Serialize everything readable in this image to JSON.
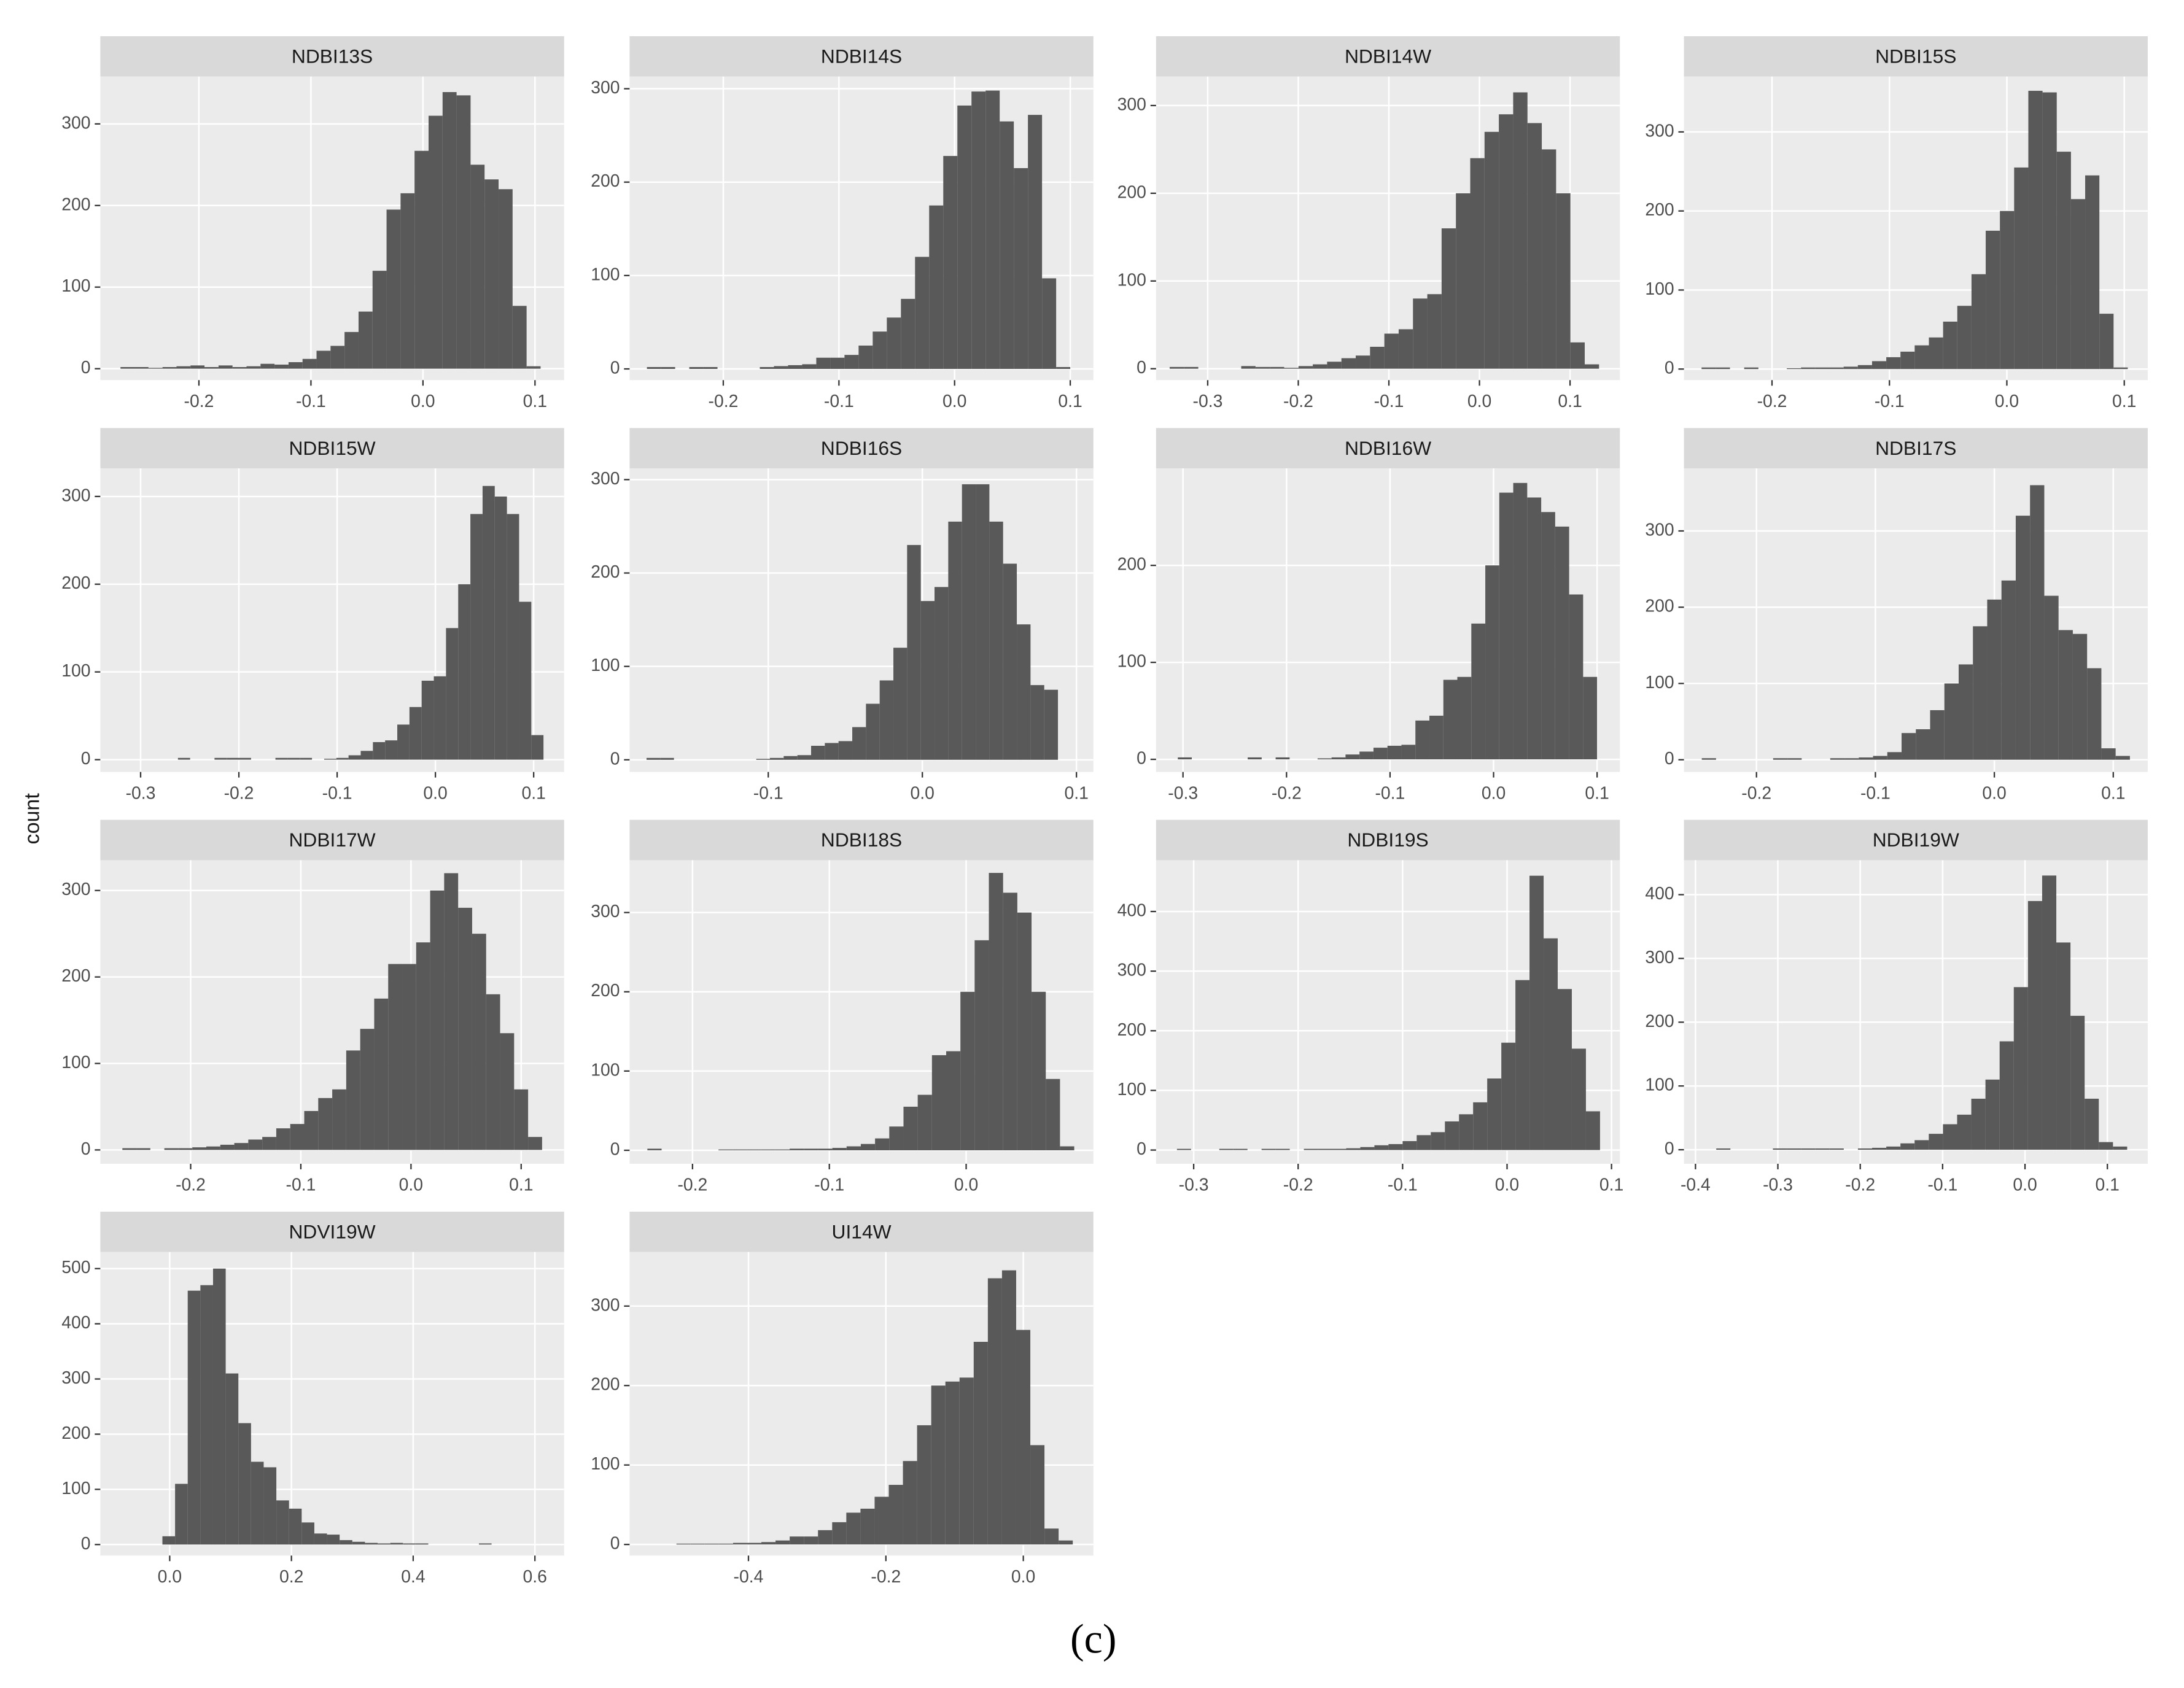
{
  "ylabel": "count",
  "caption": "(c)",
  "chart_data": [
    {
      "type": "histogram",
      "title": "NDBI13S",
      "color": "#595959",
      "grid": true,
      "xlim": [
        -0.288,
        0.126
      ],
      "ylim": [
        -14,
        358
      ],
      "xticks": [
        -0.2,
        -0.1,
        {
          "value": 0,
          "label": "0.0"
        },
        0.1
      ],
      "yticks": [
        0,
        100,
        200,
        300
      ],
      "bins": [
        -0.27,
        -0.2575,
        -0.245,
        -0.2325,
        -0.22,
        -0.2075,
        -0.195,
        -0.1825,
        -0.17,
        -0.1575,
        -0.145,
        -0.1325,
        -0.12,
        -0.1075,
        -0.095,
        -0.0825,
        -0.07,
        -0.0575,
        -0.045,
        -0.0325,
        -0.02,
        -0.0075,
        0.005,
        0.0175,
        0.03,
        0.0425,
        0.055,
        0.0675,
        0.08,
        0.0925,
        0.105
      ],
      "counts": [
        2,
        2,
        1,
        2,
        3,
        4,
        2,
        4,
        2,
        3,
        6,
        5,
        8,
        12,
        22,
        28,
        45,
        70,
        120,
        195,
        215,
        267,
        310,
        339,
        335,
        250,
        232,
        220,
        77,
        3
      ]
    },
    {
      "type": "histogram",
      "title": "NDBI14S",
      "color": "#595959",
      "grid": true,
      "xlim": [
        -0.281,
        0.12
      ],
      "ylim": [
        -12,
        313
      ],
      "xticks": [
        -0.2,
        -0.1,
        {
          "value": 0,
          "label": "0.0"
        },
        0.1
      ],
      "yticks": [
        0,
        100,
        200,
        300
      ],
      "bins": [
        -0.266,
        -0.2538,
        -0.2416,
        -0.2294,
        -0.2172,
        -0.205,
        -0.1928,
        -0.1806,
        -0.1684,
        -0.1562,
        -0.144,
        -0.1318,
        -0.1196,
        -0.1074,
        -0.0952,
        -0.083,
        -0.0708,
        -0.0586,
        -0.0464,
        -0.0342,
        -0.022,
        -0.0098,
        0.0024,
        0.0146,
        0.0268,
        0.039,
        0.0512,
        0.0634,
        0.0756,
        0.0878,
        0.1
      ],
      "counts": [
        2,
        2,
        0,
        2,
        2,
        0,
        0,
        0,
        2,
        3,
        4,
        5,
        12,
        12,
        15,
        25,
        40,
        55,
        75,
        120,
        175,
        228,
        282,
        297,
        298,
        265,
        215,
        272,
        97,
        2
      ]
    },
    {
      "type": "histogram",
      "title": "NDBI14W",
      "color": "#595959",
      "grid": true,
      "xlim": [
        -0.357,
        0.155
      ],
      "ylim": [
        -13,
        333
      ],
      "xticks": [
        -0.3,
        -0.2,
        -0.1,
        {
          "value": 0,
          "label": "0.0"
        },
        0.1
      ],
      "yticks": [
        0,
        100,
        200,
        300
      ],
      "bins": [
        -0.342,
        -0.3262,
        -0.3104,
        -0.2946,
        -0.2788,
        -0.263,
        -0.2472,
        -0.2314,
        -0.2156,
        -0.1998,
        -0.184,
        -0.1682,
        -0.1524,
        -0.1366,
        -0.1208,
        -0.105,
        -0.0892,
        -0.0734,
        -0.0576,
        -0.0418,
        -0.026,
        -0.0102,
        0.0056,
        0.0214,
        0.0372,
        0.053,
        0.0688,
        0.0846,
        0.1004,
        0.1162,
        0.132
      ],
      "counts": [
        2,
        2,
        0,
        0,
        0,
        3,
        2,
        2,
        1,
        3,
        5,
        8,
        12,
        15,
        25,
        40,
        45,
        80,
        85,
        160,
        200,
        240,
        270,
        290,
        315,
        280,
        250,
        200,
        30,
        5
      ]
    },
    {
      "type": "histogram",
      "title": "NDBI15S",
      "color": "#595959",
      "grid": true,
      "xlim": [
        -0.275,
        0.12
      ],
      "ylim": [
        -14,
        370
      ],
      "xticks": [
        -0.2,
        -0.1,
        {
          "value": 0,
          "label": "0.0"
        },
        0.1
      ],
      "yticks": [
        0,
        100,
        200,
        300
      ],
      "bins": [
        -0.26,
        -0.2479,
        -0.2358,
        -0.2237,
        -0.2116,
        -0.1995,
        -0.1874,
        -0.1753,
        -0.1632,
        -0.1511,
        -0.139,
        -0.1269,
        -0.1148,
        -0.1027,
        -0.0906,
        -0.0785,
        -0.0664,
        -0.0543,
        -0.0422,
        -0.0301,
        -0.018,
        -0.0059,
        0.0062,
        0.0183,
        0.0304,
        0.0425,
        0.0546,
        0.0667,
        0.0788,
        0.0909,
        0.103
      ],
      "counts": [
        2,
        2,
        0,
        2,
        0,
        0,
        1,
        2,
        2,
        2,
        3,
        5,
        10,
        15,
        22,
        30,
        40,
        60,
        80,
        120,
        175,
        200,
        255,
        352,
        350,
        275,
        215,
        245,
        70,
        2
      ]
    },
    {
      "type": "histogram",
      "title": "NDBI15W",
      "color": "#595959",
      "grid": true,
      "xlim": [
        -0.341,
        0.131
      ],
      "ylim": [
        -14,
        332
      ],
      "xticks": [
        -0.3,
        -0.2,
        -0.1,
        {
          "value": 0,
          "label": "0.0"
        },
        0.1
      ],
      "yticks": [
        0,
        100,
        200,
        300
      ],
      "bins": [
        -0.262,
        -0.2496,
        -0.2372,
        -0.2248,
        -0.2124,
        -0.2,
        -0.1876,
        -0.1752,
        -0.1628,
        -0.1504,
        -0.138,
        -0.1256,
        -0.1132,
        -0.1008,
        -0.0884,
        -0.076,
        -0.0636,
        -0.0512,
        -0.0388,
        -0.0264,
        -0.014,
        -0.0016,
        0.0108,
        0.0232,
        0.0356,
        0.048,
        0.0604,
        0.0728,
        0.0852,
        0.0976,
        0.11
      ],
      "counts": [
        2,
        0,
        0,
        2,
        2,
        2,
        0,
        0,
        2,
        2,
        2,
        0,
        1,
        2,
        5,
        10,
        20,
        22,
        40,
        60,
        90,
        95,
        150,
        200,
        280,
        312,
        300,
        280,
        180,
        28
      ]
    },
    {
      "type": "histogram",
      "title": "NDBI16S",
      "color": "#595959",
      "grid": true,
      "xlim": [
        -0.19,
        0.111
      ],
      "ylim": [
        -13,
        312
      ],
      "xticks": [
        -0.1,
        {
          "value": 0,
          "label": "0.0"
        },
        0.1
      ],
      "yticks": [
        0,
        100,
        200,
        300
      ],
      "bins": [
        -0.179,
        -0.1701,
        -0.1612,
        -0.1523,
        -0.1434,
        -0.1345,
        -0.1256,
        -0.1167,
        -0.1078,
        -0.0989,
        -0.09,
        -0.0811,
        -0.0722,
        -0.0633,
        -0.0544,
        -0.0455,
        -0.0366,
        -0.0277,
        -0.0188,
        -0.0099,
        -0.001,
        0.0079,
        0.0168,
        0.0257,
        0.0346,
        0.0435,
        0.0524,
        0.0613,
        0.0702,
        0.0791,
        0.088
      ],
      "counts": [
        2,
        2,
        0,
        0,
        0,
        0,
        0,
        0,
        1,
        2,
        4,
        5,
        15,
        18,
        20,
        35,
        60,
        85,
        120,
        230,
        170,
        185,
        255,
        295,
        295,
        255,
        210,
        145,
        80,
        75
      ]
    },
    {
      "type": "histogram",
      "title": "NDBI16W",
      "color": "#595959",
      "grid": true,
      "xlim": [
        -0.326,
        0.122
      ],
      "ylim": [
        -13,
        300
      ],
      "xticks": [
        -0.3,
        -0.2,
        -0.1,
        {
          "value": 0,
          "label": "0.0"
        },
        0.1
      ],
      "yticks": [
        0,
        100,
        200
      ],
      "bins": [
        -0.305,
        -0.2915,
        -0.278,
        -0.2645,
        -0.251,
        -0.2375,
        -0.224,
        -0.2105,
        -0.197,
        -0.1835,
        -0.17,
        -0.1565,
        -0.143,
        -0.1295,
        -0.116,
        -0.1025,
        -0.089,
        -0.0755,
        -0.062,
        -0.0485,
        -0.035,
        -0.0215,
        -0.008,
        0.0055,
        0.019,
        0.0325,
        0.046,
        0.0595,
        0.073,
        0.0865,
        0.1
      ],
      "counts": [
        2,
        0,
        0,
        0,
        0,
        2,
        0,
        2,
        0,
        0,
        1,
        2,
        5,
        8,
        12,
        14,
        15,
        40,
        45,
        82,
        85,
        140,
        200,
        275,
        285,
        270,
        255,
        240,
        170,
        85
      ]
    },
    {
      "type": "histogram",
      "title": "NDBI17S",
      "color": "#595959",
      "grid": true,
      "xlim": [
        -0.261,
        0.129
      ],
      "ylim": [
        -16,
        382
      ],
      "xticks": [
        -0.2,
        -0.1,
        {
          "value": 0,
          "label": "0.0"
        },
        0.1
      ],
      "yticks": [
        0,
        100,
        200,
        300
      ],
      "bins": [
        -0.246,
        -0.234,
        -0.222,
        -0.21,
        -0.198,
        -0.186,
        -0.174,
        -0.162,
        -0.15,
        -0.138,
        -0.126,
        -0.114,
        -0.102,
        -0.09,
        -0.078,
        -0.066,
        -0.054,
        -0.042,
        -0.03,
        -0.018,
        -0.006,
        0.006,
        0.018,
        0.03,
        0.042,
        0.054,
        0.066,
        0.078,
        0.09,
        0.102,
        0.114
      ],
      "counts": [
        2,
        0,
        0,
        0,
        0,
        2,
        2,
        0,
        0,
        2,
        2,
        3,
        5,
        10,
        35,
        40,
        65,
        100,
        125,
        175,
        210,
        235,
        320,
        360,
        215,
        170,
        165,
        120,
        15,
        5
      ]
    },
    {
      "type": "histogram",
      "title": "NDBI17W",
      "color": "#595959",
      "grid": true,
      "xlim": [
        -0.282,
        0.139
      ],
      "ylim": [
        -16,
        335
      ],
      "xticks": [
        -0.2,
        -0.1,
        {
          "value": 0,
          "label": "0.0"
        },
        0.1
      ],
      "yticks": [
        0,
        100,
        200,
        300
      ],
      "bins": [
        -0.262,
        -0.2493,
        -0.2366,
        -0.2239,
        -0.2112,
        -0.1985,
        -0.1858,
        -0.1731,
        -0.1604,
        -0.1477,
        -0.135,
        -0.1223,
        -0.1096,
        -0.0969,
        -0.0842,
        -0.0715,
        -0.0588,
        -0.0461,
        -0.0334,
        -0.0207,
        -0.008,
        0.0047,
        0.0174,
        0.0301,
        0.0428,
        0.0555,
        0.0682,
        0.0809,
        0.0936,
        0.1063,
        0.119
      ],
      "counts": [
        2,
        2,
        0,
        2,
        2,
        3,
        4,
        6,
        8,
        12,
        15,
        25,
        30,
        45,
        60,
        70,
        115,
        140,
        175,
        215,
        215,
        240,
        300,
        320,
        280,
        250,
        180,
        135,
        70,
        15
      ]
    },
    {
      "type": "histogram",
      "title": "NDBI18S",
      "color": "#595959",
      "grid": true,
      "xlim": [
        -0.246,
        0.093
      ],
      "ylim": [
        -17,
        366
      ],
      "xticks": [
        -0.2,
        -0.1,
        {
          "value": 0,
          "label": "0.0"
        }
      ],
      "yticks": [
        0,
        100,
        200,
        300
      ],
      "bins": [
        -0.233,
        -0.2226,
        -0.2122,
        -0.2018,
        -0.1914,
        -0.181,
        -0.1706,
        -0.1602,
        -0.1498,
        -0.1394,
        -0.129,
        -0.1186,
        -0.1082,
        -0.0978,
        -0.0874,
        -0.077,
        -0.0666,
        -0.0562,
        -0.0458,
        -0.0354,
        -0.025,
        -0.0146,
        -0.0042,
        0.0062,
        0.0166,
        0.027,
        0.0374,
        0.0478,
        0.0582,
        0.0686,
        0.079
      ],
      "counts": [
        2,
        0,
        0,
        0,
        0,
        1,
        1,
        1,
        1,
        1,
        2,
        2,
        2,
        3,
        5,
        8,
        15,
        30,
        55,
        70,
        120,
        125,
        200,
        265,
        350,
        325,
        300,
        200,
        90,
        5
      ]
    },
    {
      "type": "histogram",
      "title": "NDBI19S",
      "color": "#595959",
      "grid": true,
      "xlim": [
        -0.336,
        0.108
      ],
      "ylim": [
        -23,
        486
      ],
      "xticks": [
        -0.3,
        -0.2,
        -0.1,
        {
          "value": 0,
          "label": "0.0"
        },
        0.1
      ],
      "yticks": [
        0,
        100,
        200,
        300,
        400
      ],
      "bins": [
        -0.316,
        -0.3025,
        -0.289,
        -0.2755,
        -0.262,
        -0.2485,
        -0.235,
        -0.2215,
        -0.208,
        -0.1945,
        -0.181,
        -0.1675,
        -0.154,
        -0.1405,
        -0.127,
        -0.1135,
        -0.1,
        -0.0865,
        -0.073,
        -0.0595,
        -0.046,
        -0.0325,
        -0.019,
        -0.0055,
        0.008,
        0.0215,
        0.035,
        0.0485,
        0.062,
        0.0755,
        0.089
      ],
      "counts": [
        2,
        0,
        0,
        2,
        2,
        0,
        2,
        2,
        0,
        2,
        2,
        2,
        3,
        5,
        8,
        10,
        15,
        25,
        30,
        48,
        60,
        80,
        120,
        180,
        285,
        460,
        355,
        270,
        170,
        65
      ]
    },
    {
      "type": "histogram",
      "title": "NDBI19W",
      "color": "#595959",
      "grid": true,
      "xlim": [
        -0.414,
        0.149
      ],
      "ylim": [
        -22,
        454
      ],
      "xticks": [
        -0.4,
        -0.3,
        -0.2,
        -0.1,
        {
          "value": 0,
          "label": "0.0"
        },
        0.1
      ],
      "yticks": [
        0,
        100,
        200,
        300,
        400
      ],
      "bins": [
        -0.392,
        -0.3748,
        -0.3576,
        -0.3404,
        -0.3232,
        -0.306,
        -0.2888,
        -0.2716,
        -0.2544,
        -0.2372,
        -0.22,
        -0.2028,
        -0.1856,
        -0.1684,
        -0.1512,
        -0.134,
        -0.1168,
        -0.0996,
        -0.0824,
        -0.0652,
        -0.048,
        -0.0308,
        -0.0136,
        0.0036,
        0.0208,
        0.038,
        0.0552,
        0.0724,
        0.0896,
        0.1068,
        0.124
      ],
      "counts": [
        0,
        2,
        0,
        0,
        0,
        2,
        2,
        2,
        2,
        2,
        0,
        2,
        3,
        5,
        10,
        15,
        25,
        40,
        55,
        80,
        110,
        170,
        255,
        390,
        430,
        325,
        210,
        80,
        12,
        5
      ]
    },
    {
      "type": "histogram",
      "title": "NDVI19W",
      "color": "#595959",
      "grid": true,
      "xlim": [
        -0.114,
        0.648
      ],
      "ylim": [
        -20,
        530
      ],
      "xticks": [
        {
          "value": 0,
          "label": "0.0"
        },
        0.2,
        0.4,
        0.6
      ],
      "yticks": [
        0,
        100,
        200,
        300,
        400,
        500
      ],
      "bins": [
        -0.012,
        0.0088,
        0.0296,
        0.0504,
        0.0712,
        0.092,
        0.1128,
        0.1336,
        0.1544,
        0.1752,
        0.196,
        0.2168,
        0.2376,
        0.2584,
        0.2792,
        0.3,
        0.3208,
        0.3416,
        0.3624,
        0.3832,
        0.404,
        0.4248,
        0.4456,
        0.4664,
        0.4872,
        0.508,
        0.5288,
        0.5496,
        0.5704,
        0.5912,
        0.612
      ],
      "counts": [
        15,
        110,
        460,
        470,
        500,
        310,
        220,
        150,
        140,
        80,
        65,
        40,
        20,
        18,
        8,
        5,
        3,
        2,
        3,
        2,
        2,
        0,
        0,
        0,
        0,
        2,
        0,
        0,
        0,
        0
      ]
    },
    {
      "type": "histogram",
      "title": "UI14W",
      "color": "#595959",
      "grid": true,
      "xlim": [
        -0.573,
        0.102
      ],
      "ylim": [
        -14,
        368
      ],
      "xticks": [
        -0.4,
        -0.2,
        {
          "value": 0,
          "label": "0.0"
        }
      ],
      "yticks": [
        0,
        100,
        200,
        300
      ],
      "bins": [
        -0.546,
        -0.5254,
        -0.5048,
        -0.4842,
        -0.4636,
        -0.443,
        -0.4224,
        -0.4018,
        -0.3812,
        -0.3606,
        -0.34,
        -0.3194,
        -0.2988,
        -0.2782,
        -0.2576,
        -0.237,
        -0.2164,
        -0.1958,
        -0.1752,
        -0.1546,
        -0.134,
        -0.1134,
        -0.0928,
        -0.0722,
        -0.0516,
        -0.031,
        -0.0104,
        0.0102,
        0.0308,
        0.0514,
        0.072
      ],
      "counts": [
        0,
        0,
        1,
        1,
        1,
        1,
        2,
        2,
        3,
        5,
        10,
        10,
        18,
        28,
        40,
        45,
        60,
        75,
        105,
        150,
        200,
        205,
        210,
        255,
        335,
        345,
        270,
        125,
        20,
        5
      ]
    }
  ]
}
